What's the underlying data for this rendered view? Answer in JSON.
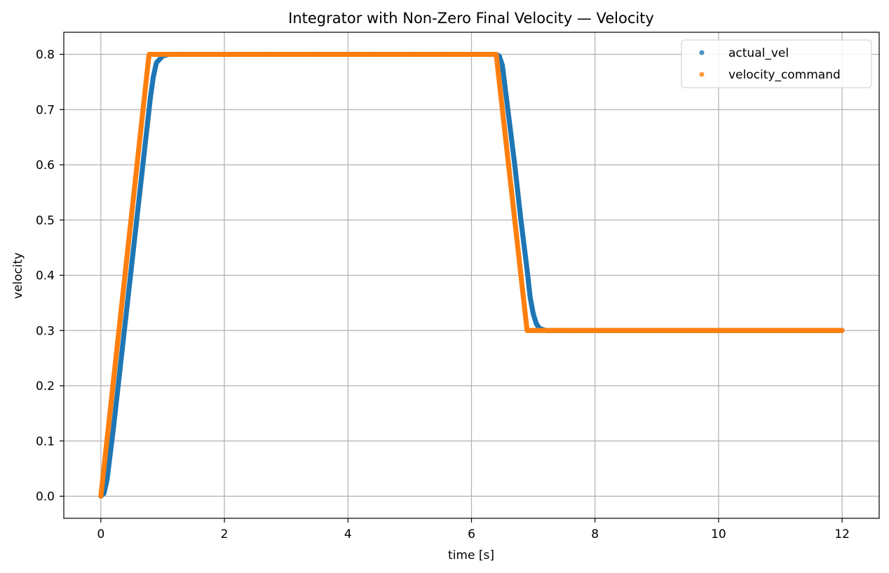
{
  "chart_data": {
    "type": "scatter",
    "title": "Integrator with Non-Zero Final Velocity — Velocity",
    "xlabel": "time [s]",
    "ylabel": "velocity",
    "xlim": [
      -0.6,
      12.6
    ],
    "ylim": [
      -0.04,
      0.84
    ],
    "xticks": [
      0,
      2,
      4,
      6,
      8,
      10,
      12
    ],
    "yticks": [
      0.0,
      0.1,
      0.2,
      0.3,
      0.4,
      0.5,
      0.6,
      0.7,
      0.8
    ],
    "xtick_labels": [
      "0",
      "2",
      "4",
      "6",
      "8",
      "10",
      "12"
    ],
    "ytick_labels": [
      "0.0",
      "0.1",
      "0.2",
      "0.3",
      "0.4",
      "0.5",
      "0.6",
      "0.7",
      "0.8"
    ],
    "grid": true,
    "legend_position": "top-right",
    "series": [
      {
        "name": "actual_vel",
        "color": "#1f77b4",
        "x": [
          0,
          0.05,
          0.1,
          0.2,
          0.3,
          0.4,
          0.5,
          0.6,
          0.7,
          0.8,
          0.85,
          0.9,
          1.0,
          1.1,
          1.2,
          2,
          3,
          4,
          5,
          6,
          6.4,
          6.45,
          6.5,
          6.6,
          6.7,
          6.8,
          6.9,
          6.95,
          7.0,
          7.05,
          7.1,
          7.2,
          7.5,
          8,
          9,
          10,
          11,
          12
        ],
        "values": [
          0.0,
          0.005,
          0.03,
          0.12,
          0.22,
          0.32,
          0.42,
          0.52,
          0.62,
          0.72,
          0.76,
          0.785,
          0.797,
          0.8,
          0.8,
          0.8,
          0.8,
          0.8,
          0.8,
          0.8,
          0.8,
          0.797,
          0.78,
          0.69,
          0.6,
          0.5,
          0.41,
          0.36,
          0.33,
          0.312,
          0.304,
          0.3,
          0.3,
          0.3,
          0.3,
          0.3,
          0.3,
          0.3
        ]
      },
      {
        "name": "velocity_command",
        "color": "#ff7f0e",
        "x": [
          0,
          0.78,
          1,
          2,
          3,
          4,
          5,
          6,
          6.4,
          6.9,
          7,
          8,
          9,
          10,
          11,
          12
        ],
        "values": [
          0.0,
          0.8,
          0.8,
          0.8,
          0.8,
          0.8,
          0.8,
          0.8,
          0.8,
          0.3,
          0.3,
          0.3,
          0.3,
          0.3,
          0.3,
          0.3
        ]
      }
    ]
  }
}
